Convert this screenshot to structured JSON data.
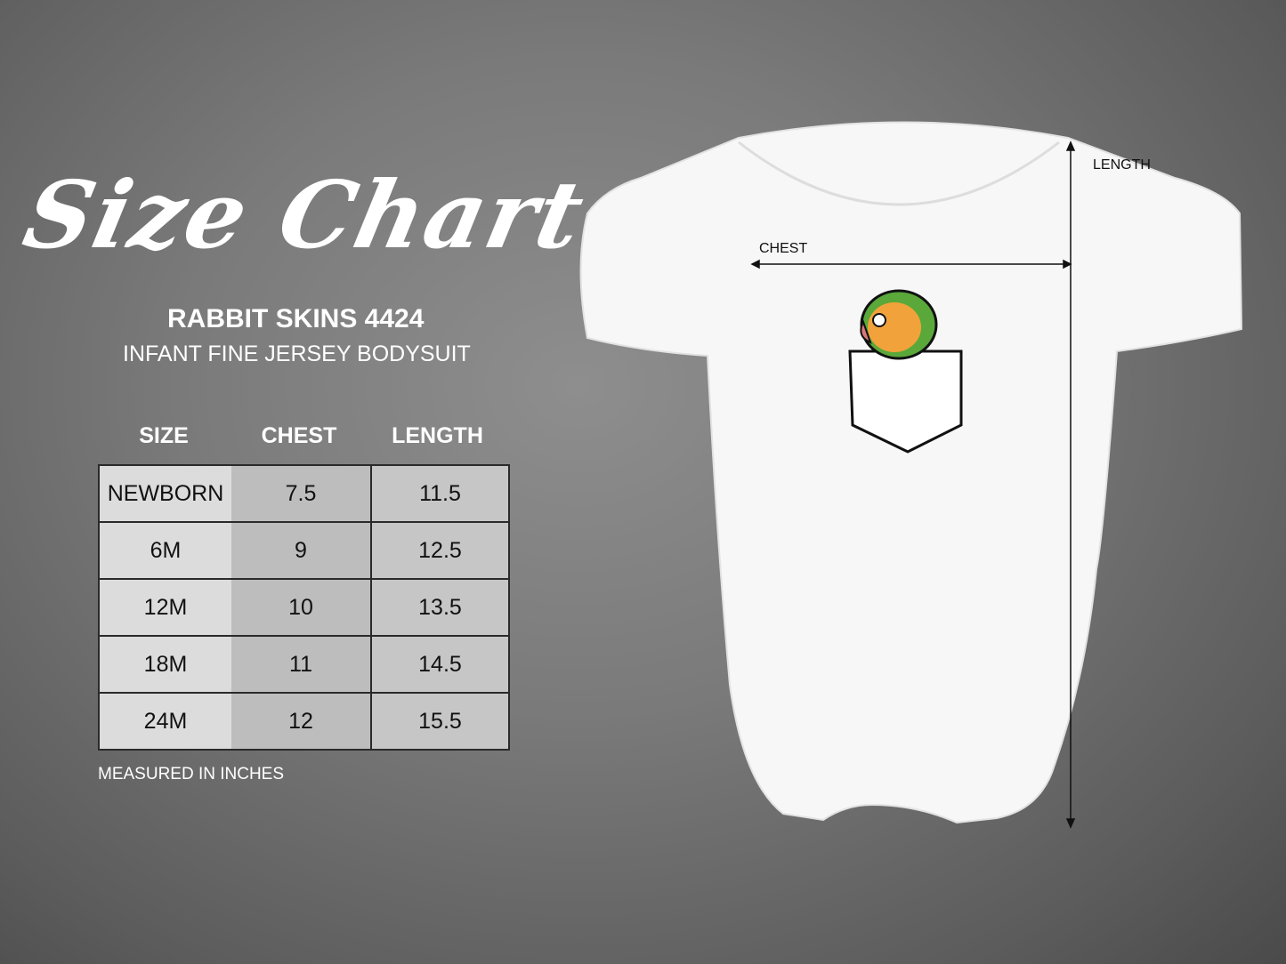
{
  "title": "Size Chart",
  "brand": "RABBIT SKINS 4424",
  "subtitle": "INFANT FINE JERSEY BODYSUIT",
  "table": {
    "headers": [
      "SIZE",
      "CHEST",
      "LENGTH"
    ],
    "rows": [
      [
        "NEWBORN",
        "7.5",
        "11.5"
      ],
      [
        "6M",
        "9",
        "12.5"
      ],
      [
        "12M",
        "10",
        "13.5"
      ],
      [
        "18M",
        "11",
        "14.5"
      ],
      [
        "24M",
        "12",
        "15.5"
      ]
    ]
  },
  "note": "MEASURED IN INCHES",
  "diagram": {
    "chest_label": "CHEST",
    "length_label": "LENGTH"
  }
}
